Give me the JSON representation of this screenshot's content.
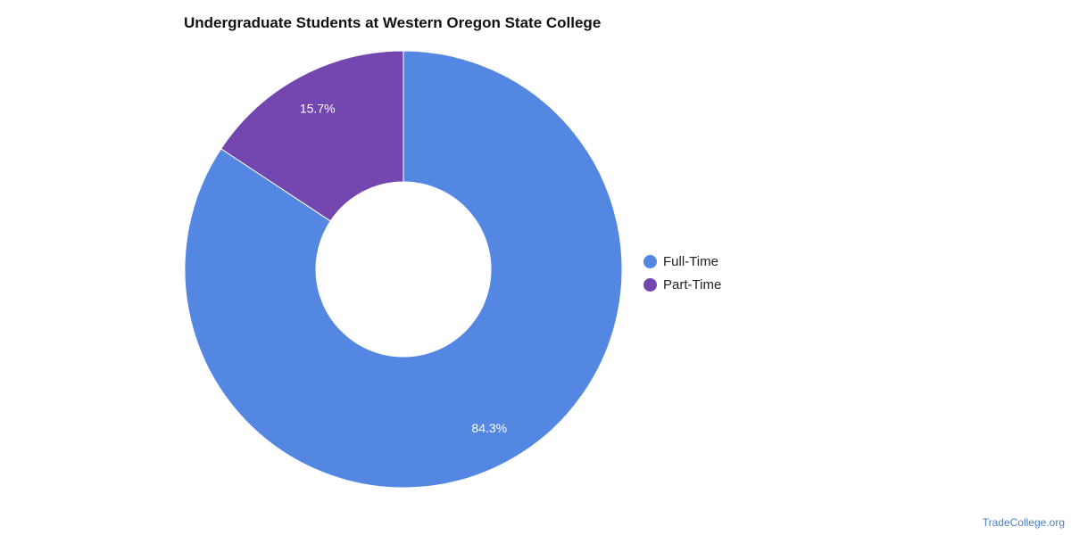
{
  "chart_data": {
    "type": "pie",
    "title": "Undergraduate Students at Western Oregon State College",
    "donut": true,
    "categories": [
      "Full-Time",
      "Part-Time"
    ],
    "values": [
      84.3,
      15.7
    ],
    "value_labels": [
      "84.3%",
      "15.7%"
    ],
    "colors": [
      "#5387e2",
      "#7447b0"
    ],
    "legend_position": "right",
    "legend": [
      {
        "label": "Full-Time",
        "color": "#5387e2"
      },
      {
        "label": "Part-Time",
        "color": "#7447b0"
      }
    ]
  },
  "footer": {
    "source": "TradeCollege.org"
  }
}
